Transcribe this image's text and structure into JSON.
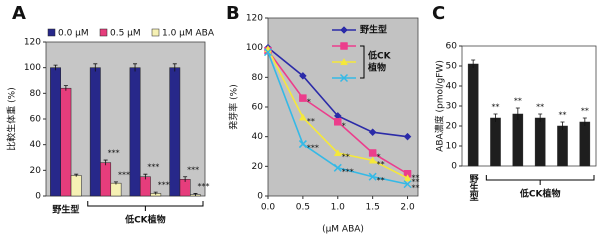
{
  "chart_data": [
    {
      "type": "bar",
      "label": "A",
      "y_label": "比較生体重 (%)",
      "categories": [
        "野生型",
        null,
        null,
        null
      ],
      "group_label": "低CK植物",
      "ylim": [
        0,
        120
      ],
      "yticks": [
        0,
        20,
        40,
        60,
        80,
        100,
        120
      ],
      "background": "#c6c6c6",
      "series": [
        {
          "name": "0.0 μM",
          "color": "#27288a",
          "values": [
            100,
            100,
            100,
            100
          ],
          "errors": [
            2,
            3,
            3,
            3
          ],
          "significance": [
            null,
            null,
            null,
            null
          ]
        },
        {
          "name": "0.5 μM",
          "color": "#e63d7c",
          "values": [
            84,
            26,
            15,
            13
          ],
          "errors": [
            2,
            2,
            2,
            2
          ],
          "significance": [
            null,
            "***",
            "***",
            "***"
          ]
        },
        {
          "name": "1.0 μM ABA",
          "color": "#f6f1b4",
          "values": [
            16,
            10,
            2,
            1
          ],
          "errors": [
            1,
            1,
            1,
            1
          ],
          "significance": [
            null,
            "***",
            "***",
            "***"
          ]
        }
      ]
    },
    {
      "type": "line",
      "label": "B",
      "y_label": "発芽率 (%)",
      "x_label": "(μM ABA)",
      "x": [
        0,
        0.5,
        1,
        1.5,
        2
      ],
      "xlim": [
        0,
        2.15
      ],
      "xticks": [
        {
          "value": 0,
          "label": "0.0"
        },
        0.5,
        {
          "value": 1,
          "label": "1.0"
        },
        1.5,
        {
          "value": 2,
          "label": "2.0"
        }
      ],
      "ylim": [
        0,
        120
      ],
      "yticks": [
        0,
        20,
        40,
        60,
        80,
        100,
        120
      ],
      "background": "#c2c2c2",
      "legend_group_label": [
        "低CK",
        "植物"
      ],
      "series": [
        {
          "name": "野生型",
          "color": "#2b2ba8",
          "marker": "diamond",
          "values": [
            100,
            81,
            54,
            43,
            40
          ],
          "significance": [
            null,
            null,
            null,
            null,
            null
          ]
        },
        {
          "color": "#ec3d8c",
          "marker": "square",
          "values": [
            98,
            66,
            50,
            29,
            15
          ],
          "significance": [
            null,
            "*",
            "*",
            "*",
            "**"
          ]
        },
        {
          "color": "#f5e83a",
          "marker": "triangle",
          "values": [
            99,
            53,
            29,
            24,
            12
          ],
          "significance": [
            null,
            "**",
            "**",
            "**",
            "**"
          ]
        },
        {
          "color": "#35b9e6",
          "marker": "x",
          "values": [
            97,
            35,
            19,
            13,
            8
          ],
          "significance": [
            null,
            "***",
            "***",
            "**",
            "**"
          ]
        }
      ]
    },
    {
      "type": "bar",
      "label": "C",
      "y_label": "ABA濃度 (pmol/gFW)",
      "categories": [
        "野生型",
        null,
        null,
        null,
        null,
        null
      ],
      "group_label": "低CK植物",
      "ylim": [
        0,
        60
      ],
      "yticks": [
        0,
        10,
        20,
        30,
        40,
        50,
        60
      ],
      "background": "#ffffff",
      "series": [
        {
          "color": "#1e1e1e",
          "values": [
            51,
            24,
            26,
            24,
            20,
            22
          ],
          "errors": [
            2,
            2,
            3,
            2,
            2,
            2
          ],
          "significance": [
            null,
            "**",
            "**",
            "**",
            "**",
            "**"
          ]
        }
      ]
    }
  ]
}
